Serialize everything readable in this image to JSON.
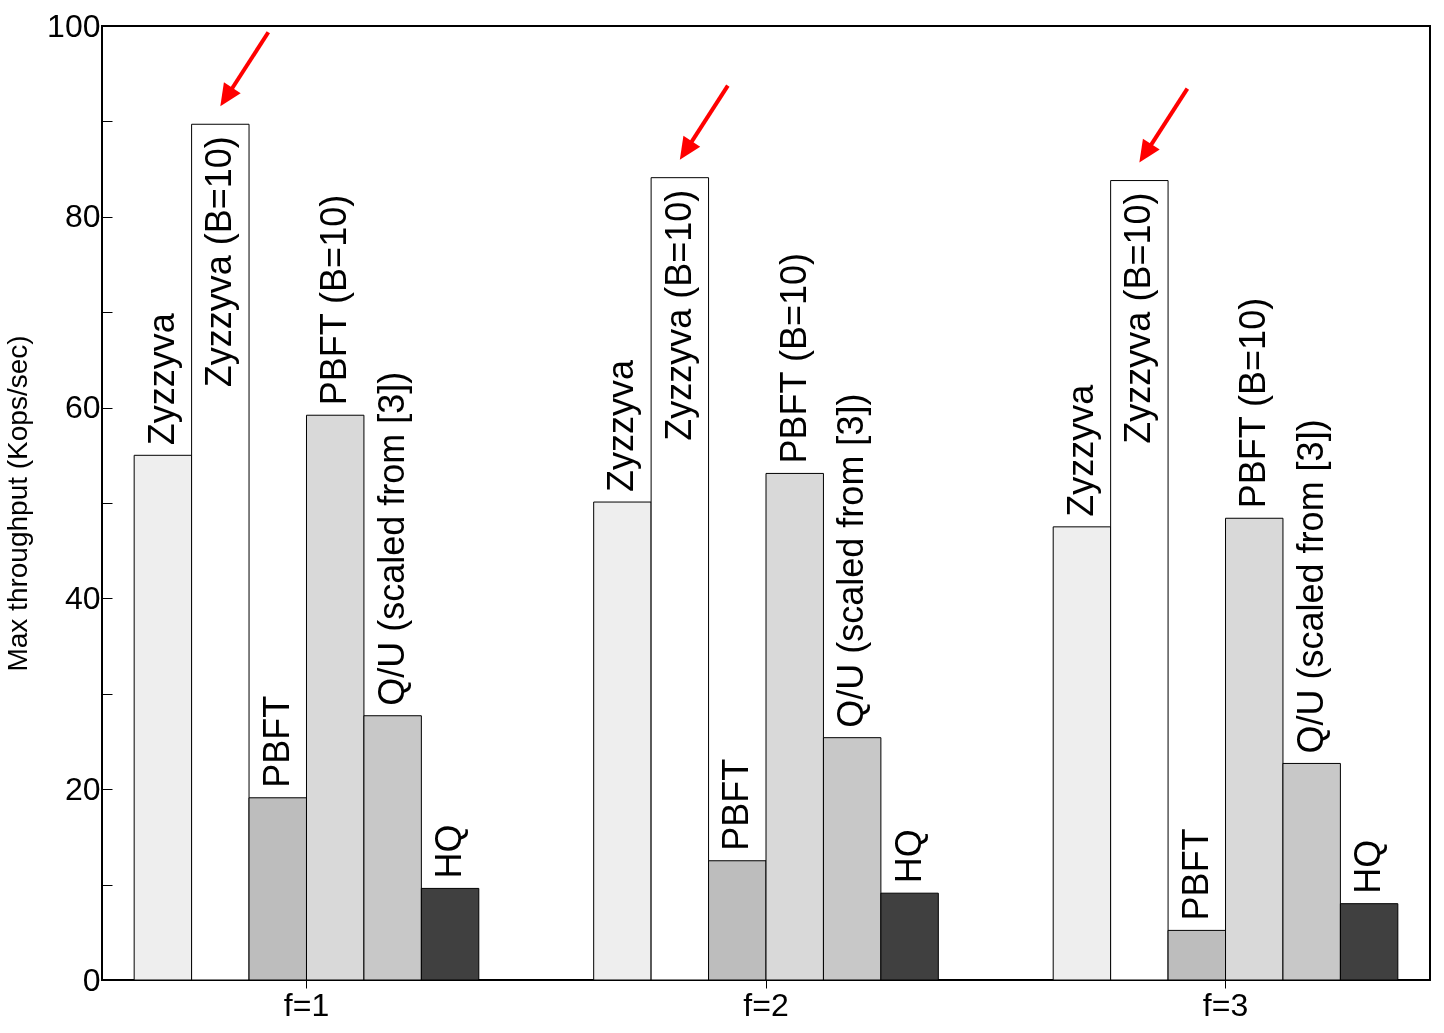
{
  "chart_data": {
    "type": "bar",
    "ylabel": "Max throughput (Kops/sec)",
    "categories": [
      "f=1",
      "f=2",
      "f=3"
    ],
    "series": [
      {
        "name": "Zyzzyva",
        "color": "#eeeeee",
        "values": [
          55.0,
          50.1,
          47.5
        ]
      },
      {
        "name": "Zyzzyva (B=10)",
        "color": "#ffffff",
        "values": [
          89.7,
          84.1,
          83.8
        ]
      },
      {
        "name": "PBFT",
        "color": "#bdbdbd",
        "values": [
          19.1,
          12.5,
          5.2
        ]
      },
      {
        "name": "PBFT (B=10)",
        "color": "#d9d9d9",
        "values": [
          59.2,
          53.1,
          48.4
        ]
      },
      {
        "name": "Q/U (scaled from [3])",
        "color": "#c8c8c8",
        "values": [
          27.7,
          25.4,
          22.7
        ]
      },
      {
        "name": "HQ",
        "color": "#404040",
        "values": [
          9.6,
          9.1,
          8.0
        ]
      }
    ],
    "ylim": [
      0,
      100
    ],
    "yticks": [
      0,
      {
        "value": 10,
        "label": null
      },
      20,
      {
        "value": 30,
        "label": null
      },
      40,
      {
        "value": 50,
        "label": null
      },
      60,
      {
        "value": 70,
        "label": null
      },
      80,
      {
        "value": 90,
        "label": null
      },
      100
    ],
    "grid": false,
    "legend": false
  }
}
